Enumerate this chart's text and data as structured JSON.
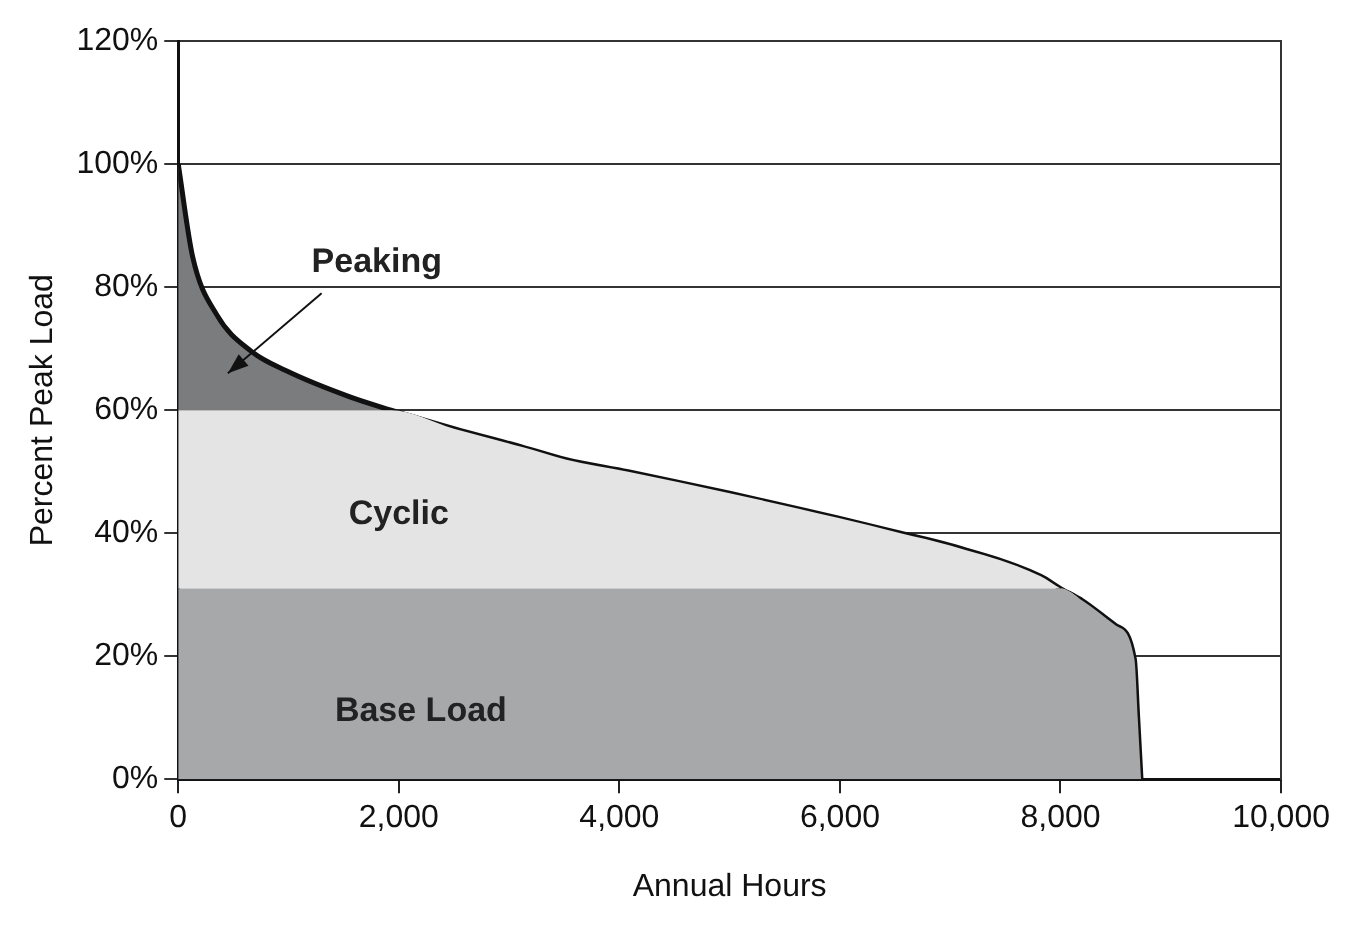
{
  "chart_data": {
    "type": "area",
    "stacked": true,
    "xlabel": "Annual Hours",
    "ylabel": "Percent Peak Load",
    "x": [
      0,
      130,
      350,
      660,
      980,
      1550,
      1930,
      2500,
      3120,
      3510,
      4080,
      5000,
      5980,
      6550,
      7000,
      7820,
      8000,
      8200,
      8500,
      8670,
      8700,
      8730
    ],
    "series": [
      {
        "name": "Base Load",
        "color": "#a7a8aa",
        "values": [
          31,
          31,
          31,
          31,
          31,
          31,
          31,
          31,
          31,
          31,
          31,
          31,
          31,
          31,
          31,
          31,
          31,
          29,
          25,
          19.5,
          10,
          0
        ]
      },
      {
        "name": "Cyclic",
        "color": "#e4e4e4",
        "values": [
          29,
          29,
          29,
          29,
          29,
          29,
          29,
          26,
          23,
          21,
          19,
          15.5,
          11.5,
          9,
          7,
          2,
          0,
          0,
          0,
          0,
          0,
          0
        ]
      },
      {
        "name": "Peaking",
        "color": "#7b7c7e",
        "values": [
          40,
          25,
          15.5,
          9.6,
          6.4,
          2.2,
          0,
          0,
          0,
          0,
          0,
          0,
          0,
          0,
          0,
          0,
          0,
          0,
          0,
          0,
          0,
          0
        ]
      }
    ],
    "xlim": [
      0,
      10000
    ],
    "xticks": [
      0,
      {
        "value": 2000,
        "label": "2,000"
      },
      {
        "value": 4000,
        "label": "4,000"
      },
      {
        "value": 6000,
        "label": "6,000"
      },
      {
        "value": 8000,
        "label": "8,000"
      },
      {
        "value": 10000,
        "label": "10,000"
      }
    ],
    "ylim": [
      0,
      120
    ],
    "yticks": [
      {
        "value": 0,
        "label": "0%"
      },
      {
        "value": 20,
        "label": "20%"
      },
      {
        "value": 40,
        "label": "40%"
      },
      {
        "value": 60,
        "label": "60%"
      },
      {
        "value": 80,
        "label": "80%"
      },
      {
        "value": 100,
        "label": "100%"
      },
      {
        "value": 120,
        "label": "120%"
      }
    ],
    "grid": "y",
    "legend": false
  }
}
